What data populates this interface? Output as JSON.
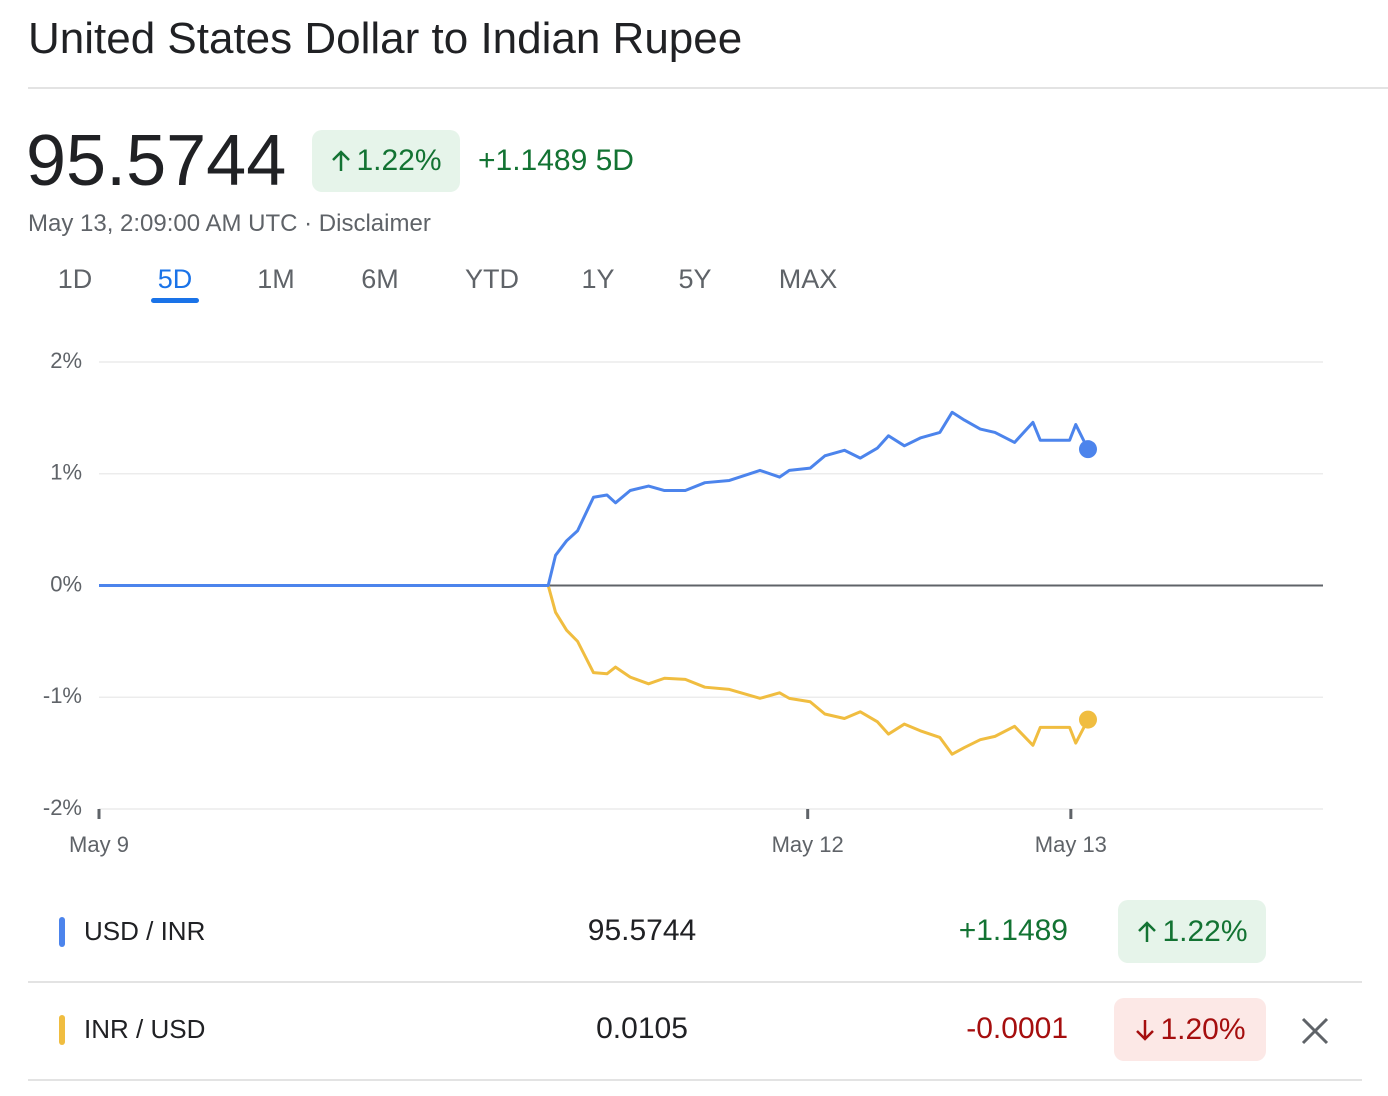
{
  "header": {
    "title": "United States Dollar to Indian Rupee",
    "price": "95.5744",
    "percent": "1.22%",
    "change": "+1.1489 5D",
    "timestamp": "May 13, 2:09:00 AM UTC",
    "separator": "·",
    "disclaimer": "Disclaimer"
  },
  "tabs": {
    "items": [
      "1D",
      "5D",
      "1M",
      "6M",
      "YTD",
      "1Y",
      "5Y",
      "MAX"
    ],
    "active": 1
  },
  "chart_data": {
    "type": "line",
    "x": [
      0,
      36.7,
      37.3,
      38.2,
      39.1,
      40.4,
      41.5,
      42.2,
      43.4,
      44.9,
      46.2,
      47.9,
      49.5,
      51.5,
      54.0,
      55.6,
      56.4,
      58.1,
      59.3,
      60.9,
      62.2,
      63.6,
      64.5,
      65.8,
      67.1,
      68.7,
      69.7,
      70.7,
      72.0,
      73.2,
      74.8,
      76.3,
      76.9,
      79.3,
      79.8,
      80.8
    ],
    "series": [
      {
        "name": "USD / INR",
        "color": "#4c84ec",
        "values": [
          0,
          0,
          0.27,
          0.4,
          0.49,
          0.79,
          0.81,
          0.74,
          0.85,
          0.89,
          0.85,
          0.85,
          0.92,
          0.94,
          1.03,
          0.97,
          1.03,
          1.05,
          1.16,
          1.21,
          1.14,
          1.23,
          1.34,
          1.25,
          1.32,
          1.37,
          1.55,
          1.48,
          1.4,
          1.37,
          1.28,
          1.46,
          1.3,
          1.3,
          1.44,
          1.22
        ]
      },
      {
        "name": "INR / USD",
        "color": "#f0bd40",
        "values": [
          0,
          0,
          -0.24,
          -0.4,
          -0.5,
          -0.78,
          -0.79,
          -0.73,
          -0.82,
          -0.88,
          -0.83,
          -0.84,
          -0.91,
          -0.93,
          -1.01,
          -0.96,
          -1.01,
          -1.04,
          -1.15,
          -1.19,
          -1.13,
          -1.22,
          -1.33,
          -1.24,
          -1.3,
          -1.36,
          -1.51,
          -1.45,
          -1.38,
          -1.35,
          -1.26,
          -1.43,
          -1.27,
          -1.27,
          -1.41,
          -1.2
        ]
      }
    ],
    "xlim": [
      0,
      100
    ],
    "xticks": [
      {
        "value": 0,
        "label": "May 9"
      },
      {
        "value": 57.9,
        "label": "May 12"
      },
      {
        "value": 79.4,
        "label": "May 13"
      }
    ],
    "ylim": [
      -2,
      2
    ],
    "yticks": [
      {
        "value": 2,
        "label": "2%"
      },
      {
        "value": 1,
        "label": "1%"
      },
      {
        "value": 0,
        "label": "0%"
      },
      {
        "value": -1,
        "label": "-1%"
      },
      {
        "value": -2,
        "label": "-2%"
      }
    ],
    "grid": true
  },
  "table": {
    "rows": [
      {
        "price": "95.5744",
        "change": "+1.1489",
        "percent": "1.22%",
        "direction": "up"
      },
      {
        "price": "0.0105",
        "change": "-0.0001",
        "percent": "1.20%",
        "direction": "down"
      }
    ]
  }
}
